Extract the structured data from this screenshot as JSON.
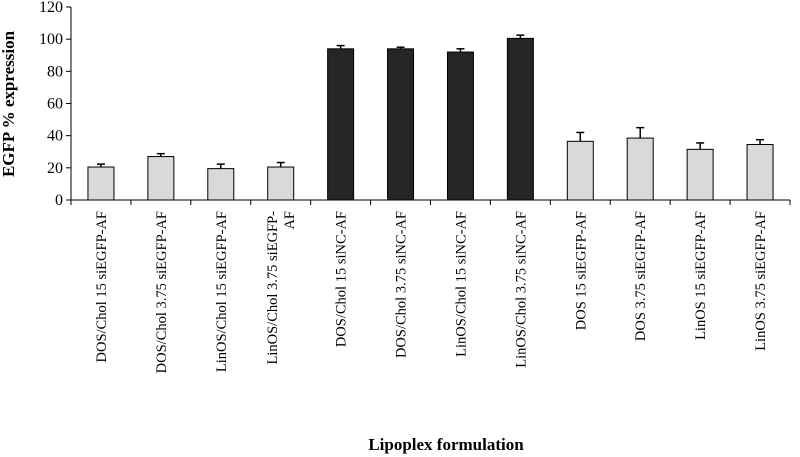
{
  "chart_data": {
    "type": "bar",
    "title": "",
    "xlabel": "Lipoplex formulation",
    "ylabel": "EGFP % expression",
    "ylim": [
      0,
      120
    ],
    "yticks": [
      0,
      20,
      40,
      60,
      80,
      100,
      120
    ],
    "grid": false,
    "categories": [
      [
        "DOS/Chol 15 siEGFP-AF"
      ],
      [
        "DOS/Chol 3.75 siEGFP-AF"
      ],
      [
        "LinOS/Chol 15 siEGFP-AF"
      ],
      [
        "LinOS/Chol 3.75 siEGFP-",
        "AF"
      ],
      [
        "DOS/Chol 15 siNC-AF"
      ],
      [
        "DOS/Chol 3.75 siNC-AF"
      ],
      [
        "LinOS/Chol 15 siNC-AF"
      ],
      [
        "LinOS/Chol 3.75 siNC-AF"
      ],
      [
        "DOS 15 siEGFP-AF"
      ],
      [
        "DOS 3.75 siEGFP-AF"
      ],
      [
        "LinOS 15 siEGFP-AF"
      ],
      [
        "LinOS 3.75 siEGFP-AF"
      ]
    ],
    "values": [
      20.5,
      27,
      19.5,
      20.5,
      94,
      94,
      92,
      100.5,
      36.5,
      38.5,
      31.5,
      34.5
    ],
    "errors": [
      1.8,
      1.8,
      2.8,
      2.8,
      2.0,
      1.0,
      2.0,
      2.0,
      5.5,
      6.5,
      4.0,
      3.0
    ],
    "colors": {
      "light": "#d9d9d9",
      "dark": "#262626",
      "stroke": "#000000"
    },
    "bar_color_keys": [
      "light",
      "light",
      "light",
      "light",
      "dark",
      "dark",
      "dark",
      "dark",
      "light",
      "light",
      "light",
      "light"
    ]
  }
}
